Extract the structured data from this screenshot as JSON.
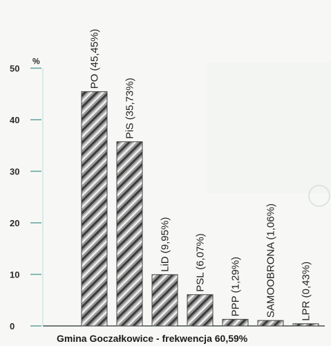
{
  "chart_data": {
    "type": "bar",
    "categories": [
      "PO",
      "PiS",
      "LiD",
      "PSL",
      "PPP",
      "SAMOOBRONA",
      "LPR"
    ],
    "values": [
      45.45,
      35.73,
      9.95,
      6.07,
      1.29,
      1.06,
      0.43
    ],
    "bar_labels": [
      "PO (45,45%)",
      "PiS (35,73%)",
      "LiD (9,95%)",
      "PSL (6,07%)",
      "PPP (1,29%)",
      "SAMOOBRONA (1,06%)",
      "LPR (0,43%)"
    ],
    "y_unit": "%",
    "y_ticks": [
      0,
      10,
      20,
      30,
      40,
      50
    ],
    "ylim": [
      0,
      50
    ],
    "grid": false,
    "caption": "Gmina Goczałkowice - frekwencja 60,59%",
    "colors": {
      "axis": "#1f2f2a",
      "tick": "#6aa6a0",
      "bar_outline": "#444444",
      "stripe_dark": "#343434",
      "stripe_light": "#eeeeee"
    }
  }
}
